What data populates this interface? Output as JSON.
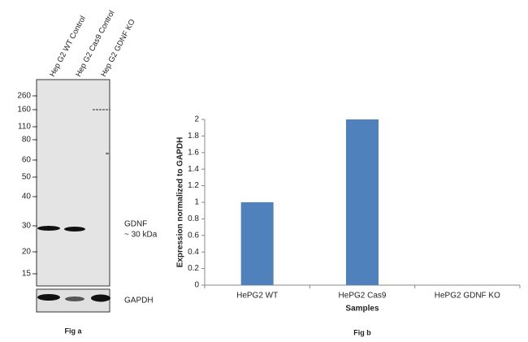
{
  "blot": {
    "lanes": [
      "Hep G2 WT Control",
      "Hep G2 Cas9 Control",
      "Hep G2 GDNF KO"
    ],
    "markers": [
      260,
      160,
      110,
      80,
      60,
      50,
      40,
      30,
      20,
      15
    ],
    "band_label": "GDNF",
    "band_size": "~ 30 kDa",
    "loading_label": "GAPDH",
    "caption": "Fig a"
  },
  "chart_data": {
    "type": "bar",
    "caption": "Fig b",
    "categories": [
      "HePG2 WT",
      "HePG2 Cas9",
      "HePG2 GDNF KO"
    ],
    "values": [
      1,
      2,
      0
    ],
    "color": "#4f81bd",
    "x_label": "Samples",
    "y_label": "Expression  normalized to GAPDH",
    "ylim": [
      0,
      2
    ],
    "yticks": [
      0,
      0.2,
      0.4,
      0.6,
      0.8,
      1,
      1.2,
      1.4,
      1.6,
      1.8,
      2
    ]
  }
}
